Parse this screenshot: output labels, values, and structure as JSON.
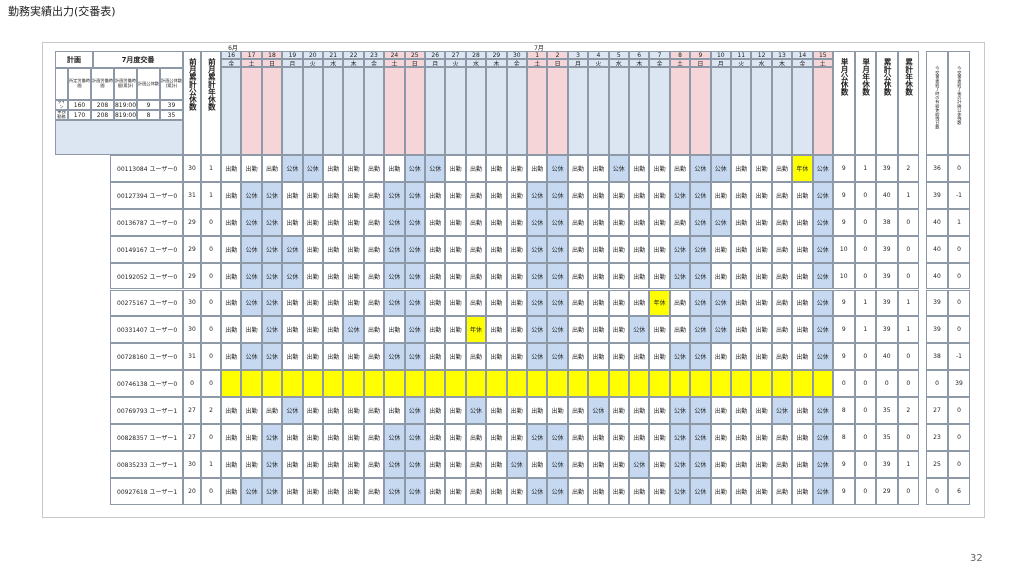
{
  "header": {
    "title": "勤務実績出力(交番表)"
  },
  "table": {
    "plan": {
      "label": "計画",
      "period": "7月度交番",
      "columns": [
        "所定労働時間",
        "計画労働時間",
        "計画労働時間(累計)",
        "計画公休数",
        "計画公休数(累計)"
      ],
      "rows": [
        {
          "label": "ライン",
          "values": [
            160,
            208,
            "819:00",
            9,
            39
          ]
        },
        {
          "label": "単独勤務",
          "values": [
            170,
            208,
            "819:00",
            8,
            35
          ]
        }
      ]
    },
    "prev_columns": [
      "前月累計公休数",
      "前月累計年休数"
    ],
    "days": [
      {
        "month": "6月",
        "date": 16,
        "weekday": "金"
      },
      {
        "date": 17,
        "weekday": "土",
        "weekend": true
      },
      {
        "date": 18,
        "weekday": "日",
        "weekend": true
      },
      {
        "date": 19,
        "weekday": "月"
      },
      {
        "date": 20,
        "weekday": "火"
      },
      {
        "date": 21,
        "weekday": "水"
      },
      {
        "date": 22,
        "weekday": "木"
      },
      {
        "date": 23,
        "weekday": "金"
      },
      {
        "date": 24,
        "weekday": "土",
        "weekend": true
      },
      {
        "date": 25,
        "weekday": "日",
        "weekend": true
      },
      {
        "date": 26,
        "weekday": "月"
      },
      {
        "date": 27,
        "weekday": "火"
      },
      {
        "date": 28,
        "weekday": "水"
      },
      {
        "date": 29,
        "weekday": "木"
      },
      {
        "date": 30,
        "weekday": "金"
      },
      {
        "month": "7月",
        "date": 1,
        "weekday": "土",
        "weekend": true
      },
      {
        "date": 2,
        "weekday": "日",
        "weekend": true
      },
      {
        "date": 3,
        "weekday": "月"
      },
      {
        "date": 4,
        "weekday": "火"
      },
      {
        "date": 5,
        "weekday": "水"
      },
      {
        "date": 6,
        "weekday": "木"
      },
      {
        "date": 7,
        "weekday": "金"
      },
      {
        "date": 8,
        "weekday": "土",
        "weekend": true
      },
      {
        "date": 9,
        "weekday": "日",
        "weekend": true
      },
      {
        "date": 10,
        "weekday": "月"
      },
      {
        "date": 11,
        "weekday": "火"
      },
      {
        "date": 12,
        "weekday": "水"
      },
      {
        "date": 13,
        "weekday": "木"
      },
      {
        "date": 14,
        "weekday": "金"
      },
      {
        "date": 15,
        "weekday": "土",
        "weekend": true
      }
    ],
    "summary_columns": [
      "単月公休数",
      "単月年休数",
      "累計公休数",
      "累計年休数"
    ],
    "extra_columns": [
      "今交番表終了時の有給休暇残日数",
      "今交番表終了後の計画公休残数"
    ],
    "day_colors": {
      "公休": "#c6d9f1",
      "年休": "#ffff00"
    },
    "blank_color": "#ffff00",
    "rows": [
      {
        "id": "00113084 ユーザー0",
        "prev": [
          30,
          1
        ],
        "days": [
          "出勤",
          "出勤",
          "出勤",
          "公休",
          "公休",
          "出勤",
          "出勤",
          "出勤",
          "出勤",
          "公休",
          "公休",
          "出勤",
          "出勤",
          "出勤",
          "出勤",
          "出勤",
          "公休",
          "出勤",
          "出勤",
          "公休",
          "出勤",
          "出勤",
          "出勤",
          "公休",
          "公休",
          "出勤",
          "出勤",
          "出勤",
          "年休",
          "公休"
        ],
        "summary": [
          9,
          1,
          39,
          2
        ],
        "extra": [
          36,
          0
        ]
      },
      {
        "id": "00127394 ユーザー0",
        "prev": [
          31,
          1
        ],
        "days": [
          "出勤",
          "公休",
          "公休",
          "出勤",
          "出勤",
          "出勤",
          "出勤",
          "出勤",
          "公休",
          "公休",
          "出勤",
          "出勤",
          "出勤",
          "出勤",
          "出勤",
          "公休",
          "公休",
          "出勤",
          "出勤",
          "出勤",
          "出勤",
          "出勤",
          "公休",
          "公休",
          "出勤",
          "出勤",
          "出勤",
          "出勤",
          "出勤",
          "公休"
        ],
        "summary": [
          9,
          0,
          40,
          1
        ],
        "extra": [
          39,
          -1
        ]
      },
      {
        "id": "00136787 ユーザー0",
        "prev": [
          29,
          0
        ],
        "days": [
          "出勤",
          "公休",
          "公休",
          "出勤",
          "出勤",
          "出勤",
          "出勤",
          "出勤",
          "公休",
          "公休",
          "出勤",
          "出勤",
          "出勤",
          "出勤",
          "出勤",
          "公休",
          "公休",
          "出勤",
          "出勤",
          "出勤",
          "出勤",
          "出勤",
          "出勤",
          "公休",
          "公休",
          "出勤",
          "出勤",
          "出勤",
          "出勤",
          "公休"
        ],
        "summary": [
          9,
          0,
          38,
          0
        ],
        "extra": [
          40,
          1
        ]
      },
      {
        "id": "00149167 ユーザー0",
        "prev": [
          29,
          0
        ],
        "days": [
          "出勤",
          "公休",
          "公休",
          "公休",
          "出勤",
          "出勤",
          "出勤",
          "出勤",
          "公休",
          "公休",
          "出勤",
          "出勤",
          "出勤",
          "出勤",
          "出勤",
          "公休",
          "公休",
          "出勤",
          "出勤",
          "出勤",
          "出勤",
          "出勤",
          "公休",
          "公休",
          "出勤",
          "出勤",
          "出勤",
          "出勤",
          "出勤",
          "公休"
        ],
        "summary": [
          10,
          0,
          39,
          0
        ],
        "extra": [
          40,
          0
        ]
      },
      {
        "id": "00192052 ユーザー0",
        "prev": [
          29,
          0
        ],
        "days": [
          "出勤",
          "公休",
          "公休",
          "公休",
          "出勤",
          "出勤",
          "出勤",
          "出勤",
          "公休",
          "公休",
          "出勤",
          "出勤",
          "出勤",
          "出勤",
          "出勤",
          "公休",
          "公休",
          "出勤",
          "出勤",
          "出勤",
          "出勤",
          "出勤",
          "公休",
          "公休",
          "出勤",
          "出勤",
          "出勤",
          "出勤",
          "出勤",
          "公休"
        ],
        "summary": [
          10,
          0,
          39,
          0
        ],
        "extra": [
          40,
          0
        ]
      },
      {
        "id": "00275167 ユーザー0",
        "prev": [
          30,
          0
        ],
        "days": [
          "出勤",
          "公休",
          "公休",
          "出勤",
          "出勤",
          "出勤",
          "出勤",
          "出勤",
          "公休",
          "公休",
          "出勤",
          "出勤",
          "出勤",
          "出勤",
          "出勤",
          "公休",
          "公休",
          "出勤",
          "出勤",
          "出勤",
          "出勤",
          "年休",
          "出勤",
          "公休",
          "公休",
          "出勤",
          "出勤",
          "出勤",
          "出勤",
          "公休"
        ],
        "summary": [
          9,
          1,
          39,
          1
        ],
        "extra": [
          39,
          0
        ]
      },
      {
        "id": "00331407 ユーザー0",
        "prev": [
          30,
          0
        ],
        "days": [
          "出勤",
          "出勤",
          "公休",
          "出勤",
          "出勤",
          "出勤",
          "公休",
          "出勤",
          "出勤",
          "公休",
          "出勤",
          "出勤",
          "年休",
          "出勤",
          "出勤",
          "公休",
          "公休",
          "出勤",
          "出勤",
          "出勤",
          "公休",
          "出勤",
          "出勤",
          "公休",
          "公休",
          "出勤",
          "出勤",
          "出勤",
          "出勤",
          "公休"
        ],
        "summary": [
          9,
          1,
          39,
          1
        ],
        "extra": [
          39,
          0
        ]
      },
      {
        "id": "00728160 ユーザー0",
        "prev": [
          31,
          0
        ],
        "days": [
          "出勤",
          "公休",
          "公休",
          "出勤",
          "出勤",
          "出勤",
          "出勤",
          "出勤",
          "公休",
          "公休",
          "出勤",
          "出勤",
          "出勤",
          "出勤",
          "出勤",
          "公休",
          "公休",
          "出勤",
          "出勤",
          "出勤",
          "出勤",
          "出勤",
          "公休",
          "公休",
          "出勤",
          "出勤",
          "出勤",
          "出勤",
          "出勤",
          "公休"
        ],
        "summary": [
          9,
          0,
          40,
          0
        ],
        "extra": [
          38,
          -1
        ]
      },
      {
        "id": "00746138 ユーザー0",
        "prev": [
          0,
          0
        ],
        "days": [
          null,
          null,
          null,
          null,
          null,
          null,
          null,
          null,
          null,
          null,
          null,
          null,
          null,
          null,
          null,
          null,
          null,
          null,
          null,
          null,
          null,
          null,
          null,
          null,
          null,
          null,
          null,
          null,
          null,
          null
        ],
        "summary": [
          0,
          0,
          0,
          0
        ],
        "extra": [
          0,
          39
        ]
      },
      {
        "id": "00769793 ユーザー1",
        "prev": [
          27,
          2
        ],
        "days": [
          "出勤",
          "出勤",
          "出勤",
          "公休",
          "出勤",
          "出勤",
          "出勤",
          "出勤",
          "出勤",
          "公休",
          "出勤",
          "出勤",
          "公休",
          "出勤",
          "出勤",
          "出勤",
          "出勤",
          "出勤",
          "公休",
          "出勤",
          "出勤",
          "出勤",
          "公休",
          "公休",
          "出勤",
          "出勤",
          "出勤",
          "公休",
          "出勤",
          "公休"
        ],
        "summary": [
          8,
          0,
          35,
          2
        ],
        "extra": [
          27,
          0
        ]
      },
      {
        "id": "00828357 ユーザー1",
        "prev": [
          27,
          0
        ],
        "days": [
          "出勤",
          "出勤",
          "公休",
          "出勤",
          "出勤",
          "出勤",
          "出勤",
          "出勤",
          "公休",
          "公休",
          "出勤",
          "出勤",
          "出勤",
          "出勤",
          "出勤",
          "公休",
          "公休",
          "出勤",
          "出勤",
          "出勤",
          "出勤",
          "出勤",
          "公休",
          "公休",
          "出勤",
          "出勤",
          "出勤",
          "出勤",
          "出勤",
          "公休"
        ],
        "summary": [
          8,
          0,
          35,
          0
        ],
        "extra": [
          23,
          0
        ]
      },
      {
        "id": "00835233 ユーザー1",
        "prev": [
          30,
          1
        ],
        "days": [
          "出勤",
          "出勤",
          "公休",
          "出勤",
          "出勤",
          "出勤",
          "出勤",
          "出勤",
          "公休",
          "公休",
          "出勤",
          "出勤",
          "出勤",
          "出勤",
          "公休",
          "出勤",
          "公休",
          "出勤",
          "出勤",
          "出勤",
          "公休",
          "出勤",
          "公休",
          "公休",
          "出勤",
          "出勤",
          "出勤",
          "出勤",
          "出勤",
          "公休"
        ],
        "summary": [
          9,
          0,
          39,
          1
        ],
        "extra": [
          25,
          0
        ]
      },
      {
        "id": "00927618 ユーザー1",
        "prev": [
          20,
          0
        ],
        "days": [
          "出勤",
          "公休",
          "公休",
          "出勤",
          "出勤",
          "出勤",
          "出勤",
          "出勤",
          "公休",
          "公休",
          "出勤",
          "出勤",
          "出勤",
          "出勤",
          "出勤",
          "公休",
          "公休",
          "出勤",
          "出勤",
          "出勤",
          "出勤",
          "出勤",
          "公休",
          "公休",
          "出勤",
          "出勤",
          "出勤",
          "出勤",
          "出勤",
          "公休"
        ],
        "summary": [
          9,
          0,
          29,
          0
        ],
        "extra": [
          0,
          6
        ]
      }
    ]
  },
  "page_number": 32
}
